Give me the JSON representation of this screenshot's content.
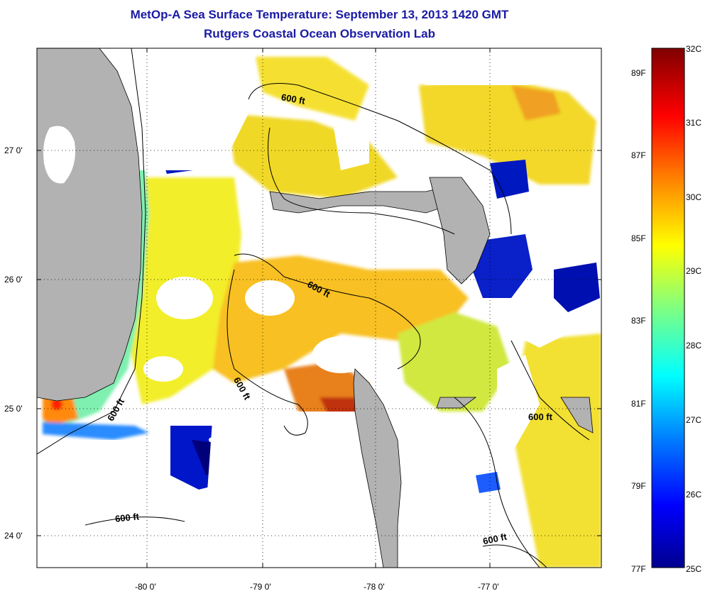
{
  "title": "MetOp-A Sea Surface Temperature:  September 13, 2013 1420 GMT",
  "subtitle": "Rutgers Coastal Ocean Observation Lab",
  "map": {
    "lat_labels": [
      "27 0'",
      "26 0'",
      "25 0'",
      "24 0'"
    ],
    "lon_labels": [
      "-80 0'",
      "-79 0'",
      "-78 0'",
      "-77 0'"
    ],
    "contour_label": "600 ft",
    "colors": {
      "land": "#b2b2b2",
      "cloud": "#ffffff",
      "frame": "#000000"
    }
  },
  "colorbar": {
    "celsius_labels": [
      "32C",
      "31C",
      "30C",
      "29C",
      "28C",
      "27C",
      "26C",
      "25C"
    ],
    "fahrenheit_labels": [
      "89F",
      "87F",
      "85F",
      "83F",
      "81F",
      "79F",
      "77F"
    ],
    "stops": [
      "#00008f",
      "#0000ff",
      "#0080ff",
      "#00ffff",
      "#80ff80",
      "#ffff00",
      "#ff8000",
      "#ff0000",
      "#800000"
    ]
  }
}
